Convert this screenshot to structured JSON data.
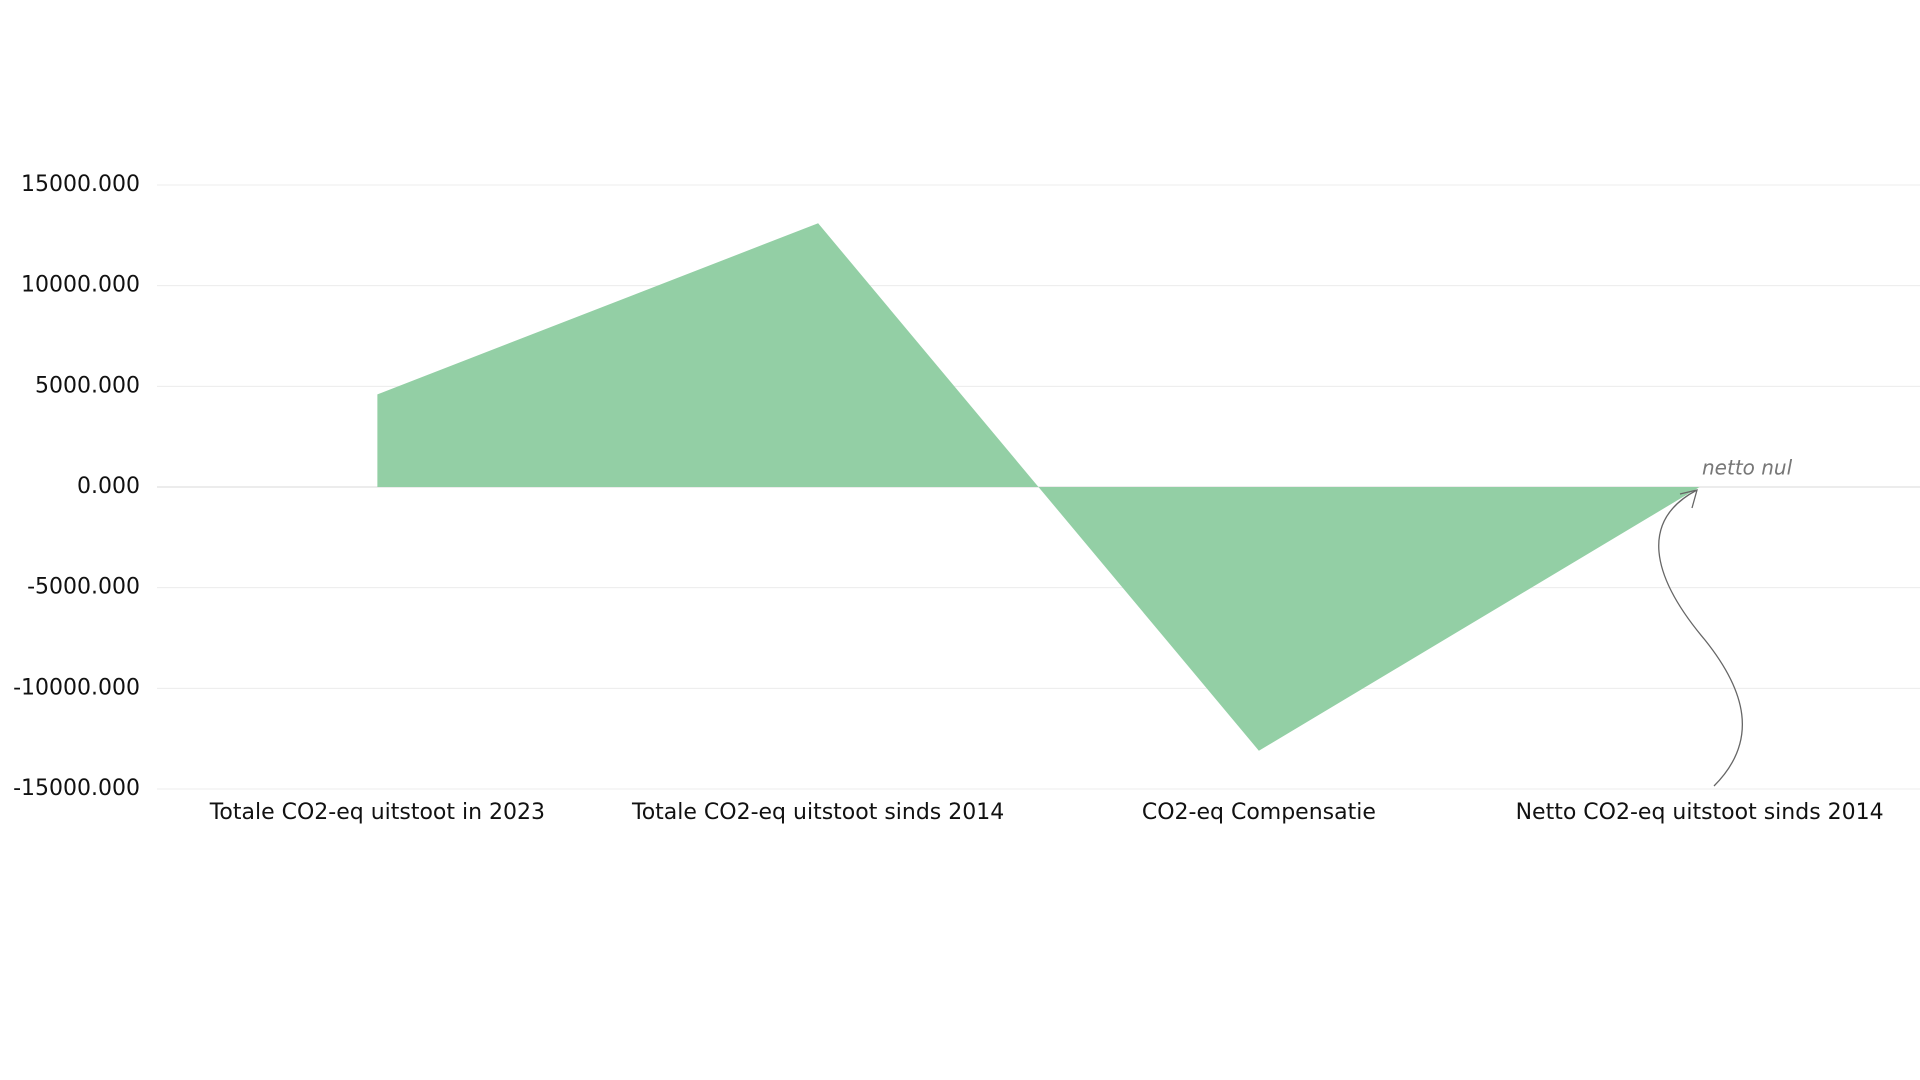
{
  "chart_data": {
    "type": "area",
    "categories": [
      "Totale CO2-eq uitstoot in 2023",
      "Totale CO2-eq uitstoot sinds 2014",
      "CO2-eq Compensatie",
      "Netto CO2-eq uitstoot sinds 2014"
    ],
    "values": [
      4600,
      13100,
      -13100,
      0
    ],
    "color": "#93cfa5",
    "ylim": [
      -15000,
      15000
    ],
    "yticks": [
      {
        "value": -15000,
        "label": "-15000.000"
      },
      {
        "value": -10000,
        "label": "-10000.000"
      },
      {
        "value": -5000,
        "label": "-5000.000"
      },
      {
        "value": 0,
        "label": "0.000"
      },
      {
        "value": 5000,
        "label": "5000.000"
      },
      {
        "value": 10000,
        "label": "10000.000"
      },
      {
        "value": 15000,
        "label": "15000.000"
      }
    ],
    "grid": true,
    "annotation": "netto nul"
  }
}
